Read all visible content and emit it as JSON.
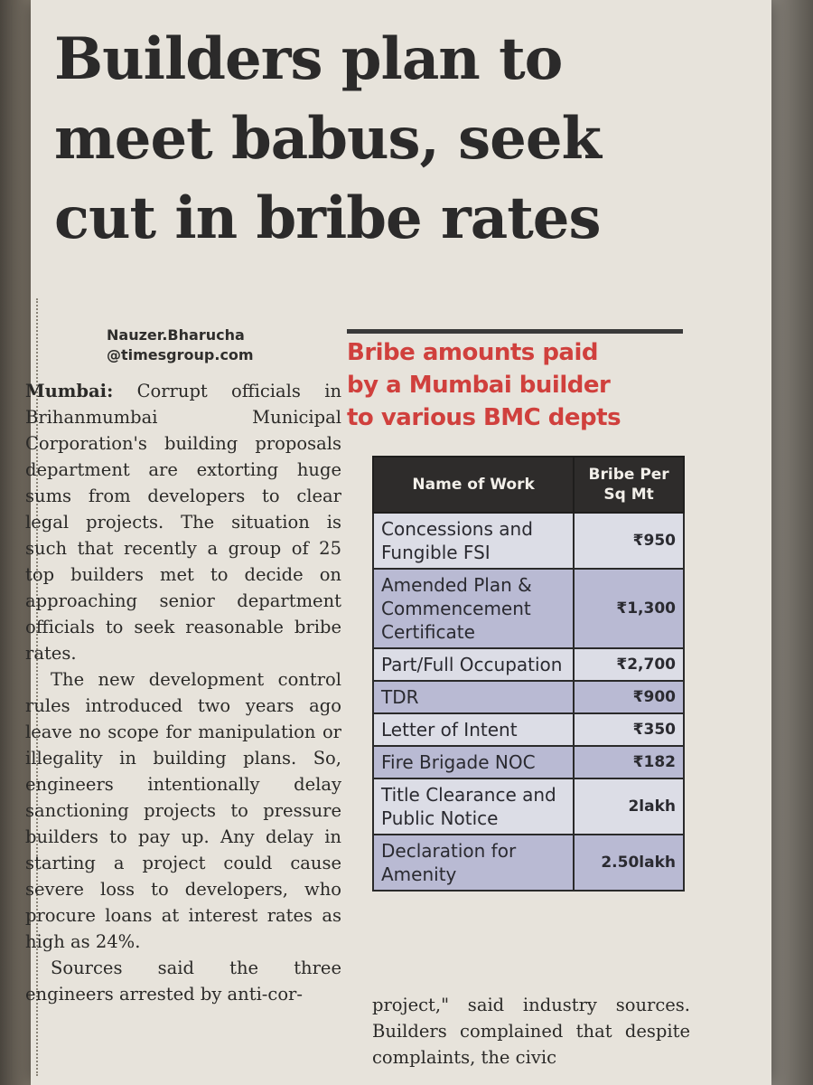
{
  "headline": {
    "lines": [
      "Builders plan to",
      "meet babus, seek",
      "cut in bribe rates"
    ]
  },
  "byline": {
    "author": "Nauzer.Bharucha",
    "email": "@timesgroup.com"
  },
  "table": {
    "caption_lines": [
      "Bribe amounts paid",
      "by a Mumbai builder",
      "to various BMC depts"
    ],
    "header_work": "Name of Work",
    "header_bribe": "Bribe Per Sq Mt",
    "rows": [
      {
        "work": "Concessions and Fungible FSI",
        "amount": "₹950"
      },
      {
        "work": "Amended Plan & Commencement Certificate",
        "amount": "₹1,300"
      },
      {
        "work": "Part/Full Occupation",
        "amount": "₹2,700"
      },
      {
        "work": "TDR",
        "amount": "₹900"
      },
      {
        "work": "Letter of Intent",
        "amount": "₹350"
      },
      {
        "work": "Fire Brigade NOC",
        "amount": "₹182"
      },
      {
        "work": "Title Clearance and Public Notice",
        "amount": "2lakh"
      },
      {
        "work": "Declaration for Amenity",
        "amount": "2.50lakh"
      }
    ]
  },
  "article": {
    "dateline": "Mumbai:",
    "para1": "Corrupt officials in Brihanmumbai Municipal Corporation's building proposals department are extorting huge sums from developers to clear legal projects. The situation is such that recently a group of 25 top builders met to decide on approaching senior department officials to seek reasonable bribe rates.",
    "para2": "The new development control rules introduced two years ago leave no scope for manipulation or illegality in building plans. So, engineers intentionally delay sanctioning projects to pressure builders to pay up. Any delay in starting a project could cause severe loss to developers, who procure loans at interest rates as high as 24%.",
    "para3": "Sources said the three engineers arrested by anti-cor-",
    "right_text": "project,\" said industry sources. Builders complained that despite complaints, the civic"
  }
}
